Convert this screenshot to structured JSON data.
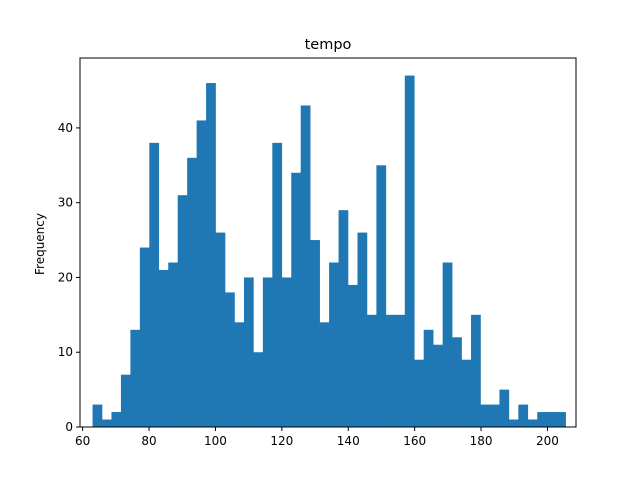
{
  "chart_data": {
    "type": "bar",
    "histogram": true,
    "title": "tempo",
    "xlabel": "",
    "ylabel": "Frequency",
    "bar_color": "#1f77b4",
    "xlim": [
      59.2,
      208.6
    ],
    "ylim": [
      0,
      49.35
    ],
    "xticks": [
      60,
      80,
      100,
      120,
      140,
      160,
      180,
      200
    ],
    "yticks": [
      0,
      10,
      20,
      30,
      40
    ],
    "grid": false,
    "bin_start": 62.98,
    "bin_width": 2.85,
    "values": [
      3,
      1,
      2,
      7,
      13,
      24,
      38,
      21,
      22,
      31,
      36,
      41,
      46,
      26,
      18,
      14,
      20,
      10,
      20,
      38,
      20,
      34,
      43,
      25,
      14,
      22,
      29,
      19,
      26,
      15,
      35,
      15,
      15,
      47,
      9,
      13,
      11,
      22,
      12,
      9,
      15,
      3,
      3,
      5,
      1,
      3,
      1,
      2,
      2,
      2
    ]
  }
}
